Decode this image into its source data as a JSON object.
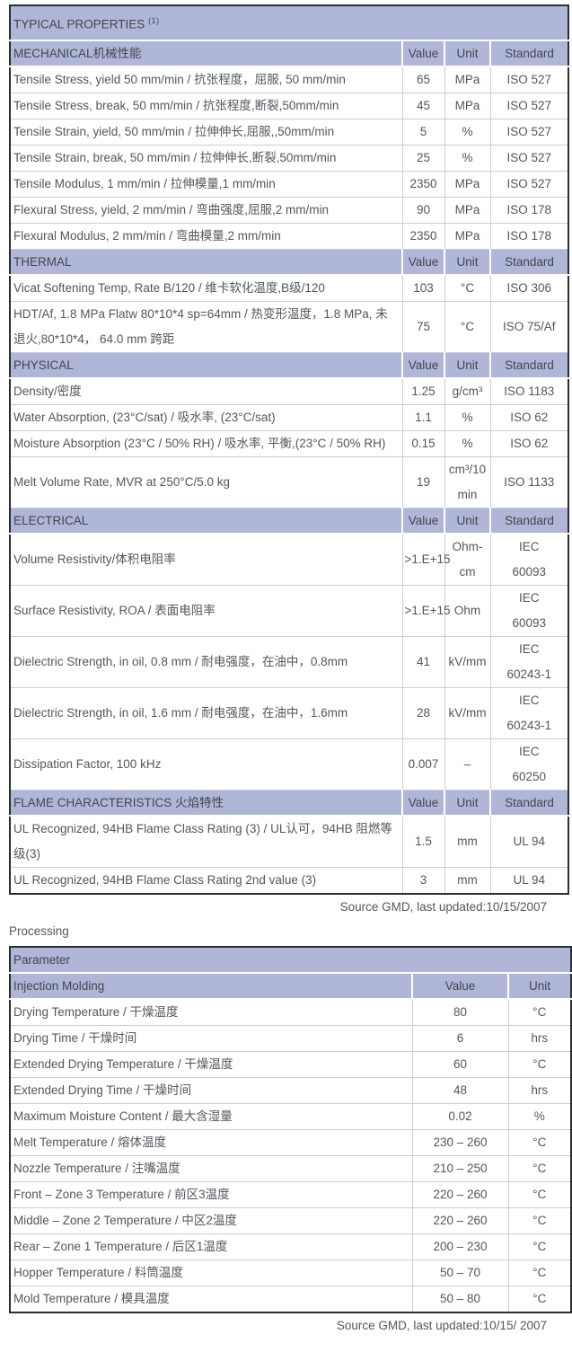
{
  "colors": {
    "header_bg": "#afb6d7",
    "header_text": "#43474f",
    "body_text": "#53565d",
    "border_light": "#cbcccf",
    "border_dark": "#2d2e31"
  },
  "properties_table": {
    "title": "TYPICAL PROPERTIES",
    "title_superscript": "(1)",
    "columns": [
      "Value",
      "Unit",
      "Standard"
    ],
    "sections": [
      {
        "name": "MECHANICAL机械性能",
        "rows": [
          [
            "Tensile Stress, yield 50 mm/min / 抗张程度，屈服, 50 mm/min",
            "65",
            "MPa",
            "ISO 527"
          ],
          [
            "Tensile Stress, break, 50 mm/min / 抗张程度,断裂,50mm/min",
            "45",
            "MPa",
            "ISO 527"
          ],
          [
            "Tensile Strain, yield, 50 mm/min / 拉伸伸长,屈服,,50mm/min",
            "5",
            "%",
            "ISO 527"
          ],
          [
            "Tensile Strain, break, 50 mm/min / 拉伸伸长,断裂,50mm/min",
            "25",
            "%",
            "ISO 527"
          ],
          [
            "Tensile Modulus, 1 mm/min / 拉伸模量,1 mm/min",
            "2350",
            "MPa",
            "ISO 527"
          ],
          [
            "Flexural Stress, yield, 2 mm/min / 弯曲强度,屈服,2 mm/min",
            "90",
            "MPa",
            "ISO 178"
          ],
          [
            "Flexural Modulus, 2 mm/min / 弯曲模量,2 mm/min",
            "2350",
            "MPa",
            "ISO 178"
          ]
        ]
      },
      {
        "name": "THERMAL",
        "rows": [
          [
            "Vicat Softening Temp, Rate B/120 / 维卡软化温度,B级/120",
            "103",
            "°C",
            "ISO 306"
          ],
          [
            "HDT/Af, 1.8 MPa Flatw 80*10*4 sp=64mm / 热变形温度，1.8 MPa, 未退火,80*10*4， 64.0 mm 跨距",
            "75",
            "°C",
            "ISO 75/Af"
          ]
        ]
      },
      {
        "name": "PHYSICAL",
        "rows": [
          [
            "Density/密度",
            "1.25",
            "g/cm³",
            "ISO 1183"
          ],
          [
            "Water Absorption, (23°C/sat) / 吸水率, (23°C/sat)",
            "1.1",
            "%",
            "ISO 62"
          ],
          [
            "Moisture Absorption (23°C / 50% RH) / 吸水率, 平衡,(23°C / 50% RH)",
            "0.15",
            "%",
            "ISO 62"
          ],
          [
            "Melt Volume Rate, MVR at 250°C/5.0 kg",
            "19",
            "cm³/10\nmin",
            "ISO 1133"
          ]
        ]
      },
      {
        "name": "ELECTRICAL",
        "rows": [
          [
            "Volume Resistivity/体积电阻率",
            ">1.E+15",
            "Ohm-\ncm",
            "IEC\n60093"
          ],
          [
            "Surface Resistivity, ROA / 表面电阻率",
            ">1.E+15",
            "Ohm",
            "IEC\n60093"
          ],
          [
            "Dielectric Strength, in oil, 0.8 mm / 耐电强度，在油中，0.8mm",
            "41",
            "kV/mm",
            "IEC\n60243-1"
          ],
          [
            "Dielectric Strength, in oil, 1.6 mm / 耐电强度，在油中，1.6mm",
            "28",
            "kV/mm",
            "IEC\n60243-1"
          ],
          [
            "Dissipation Factor, 100 kHz",
            "0.007",
            "–",
            "IEC\n60250"
          ]
        ]
      },
      {
        "name": "FLAME CHARACTERISTICS 火焰特性",
        "rows": [
          [
            "UL Recognized, 94HB Flame Class Rating (3) / UL认可，94HB 阻燃等级(3)",
            "1.5",
            "mm",
            "UL 94"
          ],
          [
            "UL Recognized, 94HB Flame Class Rating 2nd value (3)",
            "3",
            "mm",
            "UL 94"
          ]
        ]
      }
    ],
    "source_note": "Source GMD, last updated:10/15/2007"
  },
  "processing": {
    "section_title": "Processing",
    "table_title": "Parameter",
    "subheader_label": "Injection Molding",
    "columns": [
      "Value",
      "Unit"
    ],
    "rows": [
      [
        "Drying Temperature / 干燥温度",
        "80",
        "°C"
      ],
      [
        "Drying Time / 干燥时间",
        "6",
        "hrs"
      ],
      [
        "Extended Drying Temperature / 干燥温度",
        "60",
        "°C"
      ],
      [
        "Extended Drying Time / 干燥时间",
        "48",
        "hrs"
      ],
      [
        "Maximum Moisture Content / 最大含湿量",
        "0.02",
        "%"
      ],
      [
        "Melt Temperature / 熔体温度",
        "230 – 260",
        "°C"
      ],
      [
        "Nozzle Temperature / 注嘴温度",
        "210 – 250",
        "°C"
      ],
      [
        "Front – Zone 3 Temperature / 前区3温度",
        "220 – 260",
        "°C"
      ],
      [
        "Middle – Zone 2 Temperature / 中区2温度",
        "220 – 260",
        "°C"
      ],
      [
        "Rear – Zone 1 Temperature / 后区1温度",
        "200 – 230",
        "°C"
      ],
      [
        "Hopper Temperature / 料筒温度",
        "50 – 70",
        "°C"
      ],
      [
        "Mold Temperature / 模具温度",
        "50 – 80",
        "°C"
      ]
    ],
    "source_note": "Source GMD, last updated:10/15/ 2007"
  }
}
